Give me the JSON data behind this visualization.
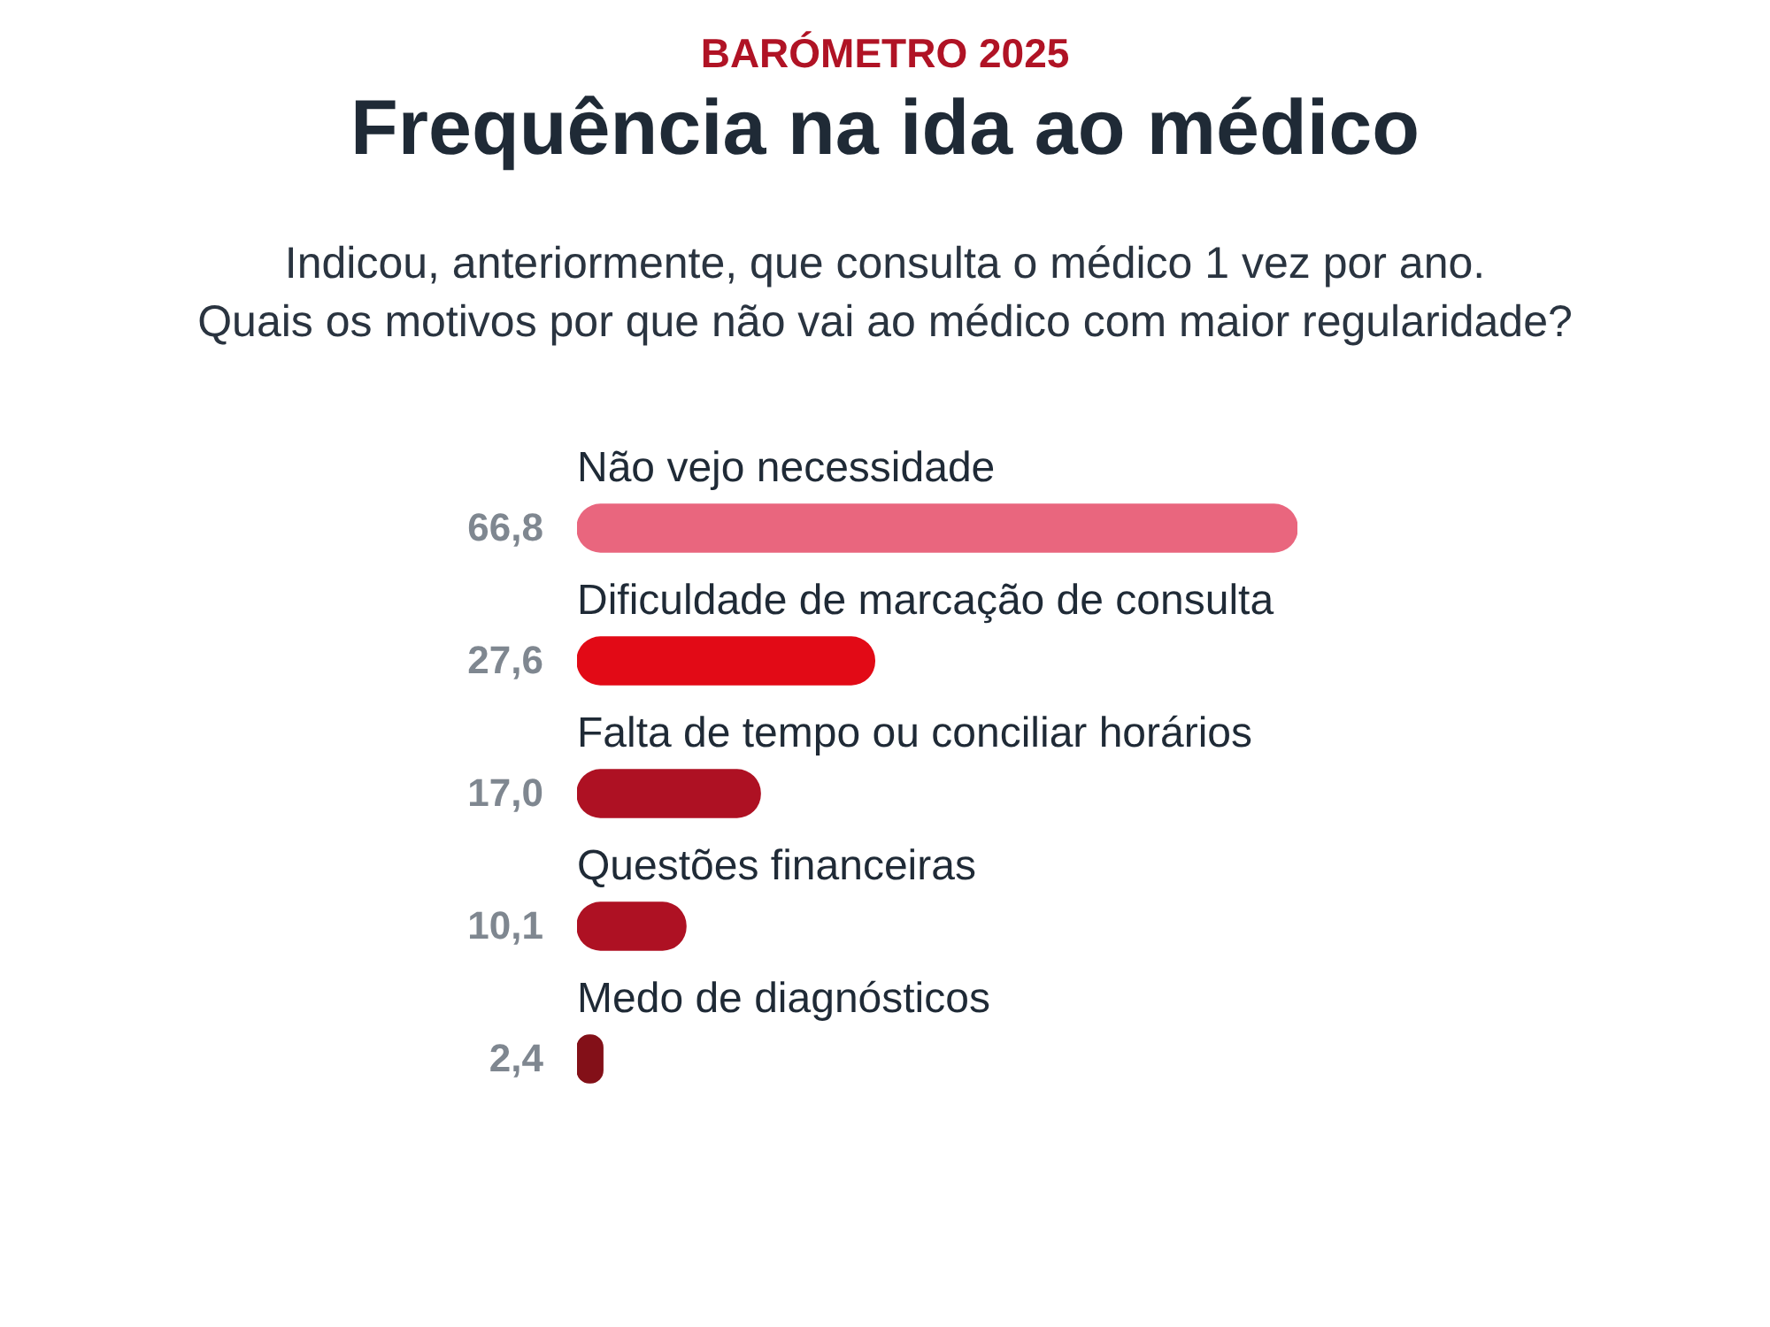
{
  "chart_data": {
    "type": "bar",
    "orientation": "horizontal",
    "title": "Frequência na ida ao médico",
    "subtitle": "Indicou, anteriormente, que consulta o médico 1 vez por ano.\nQuais os motivos por que não vai ao médico com maior regularidade?",
    "annotations": [
      "BARÓMETRO 2025"
    ],
    "categories": [
      "Não vejo necessidade",
      "Dificuldade de marcação de consulta",
      "Falta de tempo ou conciliar horários",
      "Questões financeiras",
      "Medo de diagnósticos"
    ],
    "values": [
      66.8,
      27.6,
      17.0,
      10.1,
      2.4
    ],
    "colors": [
      "#e9667e",
      "#e20a16",
      "#ae1123",
      "#ae1123",
      "#831018"
    ],
    "value_labels": [
      "66,8",
      "27,6",
      "17,0",
      "10,1",
      "2,4"
    ],
    "tick_labels": "y"
  }
}
